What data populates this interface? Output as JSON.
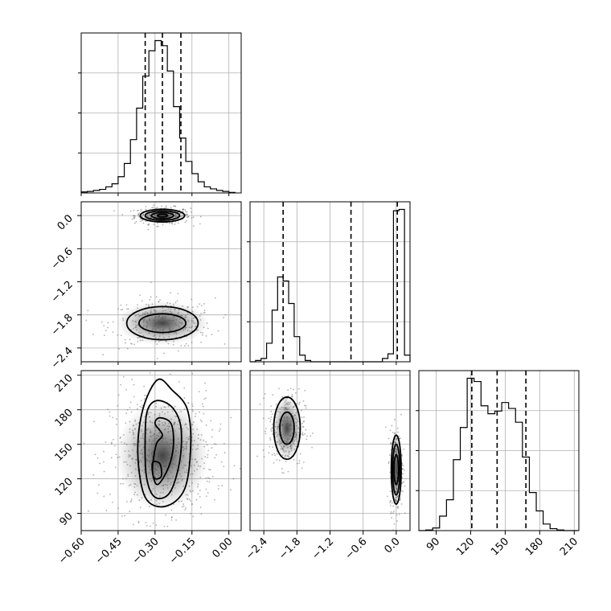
{
  "chart_data": {
    "type": "corner",
    "parameters": [
      {
        "ticks": [
          -0.6,
          -0.45,
          -0.3,
          -0.15,
          0.0
        ],
        "tick_labels": [
          "−0.60",
          "−0.45",
          "−0.30",
          "−0.15",
          "0.00"
        ],
        "range": [
          -0.6,
          0.05
        ],
        "quantiles": [
          -0.34,
          -0.27,
          -0.195
        ],
        "histogram": {
          "edges": [
            -0.6,
            -0.575,
            -0.55,
            -0.525,
            -0.5,
            -0.475,
            -0.45,
            -0.425,
            -0.4,
            -0.375,
            -0.35,
            -0.325,
            -0.3,
            -0.275,
            -0.25,
            -0.225,
            -0.2,
            -0.175,
            -0.15,
            -0.125,
            -0.1,
            -0.075,
            -0.05,
            -0.025,
            0.0,
            0.025
          ],
          "counts": [
            2,
            3,
            5,
            7,
            12,
            18,
            32,
            58,
            105,
            167,
            230,
            280,
            300,
            290,
            240,
            170,
            108,
            62,
            38,
            22,
            12,
            8,
            5,
            3,
            1
          ]
        }
      },
      {
        "ticks": [
          -2.4,
          -1.8,
          -1.2,
          -0.6,
          0.0
        ],
        "tick_labels": [
          "−2.4",
          "−1.8",
          "−1.2",
          "−0.6",
          "0.0"
        ],
        "range": [
          -2.65,
          0.25
        ],
        "quantiles": [
          -2.05,
          -0.82,
          0.02
        ],
        "histogram": {
          "edges": [
            -2.65,
            -2.55,
            -2.45,
            -2.35,
            -2.25,
            -2.15,
            -2.05,
            -1.95,
            -1.85,
            -1.75,
            -1.65,
            -1.55,
            -1.45,
            -1.35,
            -1.25,
            -1.15,
            -1.05,
            -0.95,
            -0.85,
            -0.75,
            -0.65,
            -0.55,
            -0.45,
            -0.35,
            -0.25,
            -0.15,
            -0.05,
            0.05,
            0.15,
            0.25
          ],
          "counts": [
            0,
            2,
            5,
            28,
            78,
            128,
            122,
            88,
            38,
            10,
            2,
            0,
            0,
            0,
            0,
            0,
            0,
            0,
            0,
            0,
            0,
            0,
            0,
            0,
            5,
            12,
            228,
            230,
            10
          ]
        }
      },
      {
        "ticks": [
          90,
          120,
          150,
          180,
          210
        ],
        "tick_labels": [
          "90",
          "120",
          "150",
          "180",
          "210"
        ],
        "range": [
          75,
          214
        ],
        "quantiles": [
          121,
          143,
          168
        ],
        "histogram": {
          "edges": [
            75,
            81,
            87,
            93,
            99,
            105,
            111,
            117,
            123,
            129,
            135,
            141,
            147,
            153,
            159,
            165,
            171,
            177,
            183,
            189,
            195,
            201,
            207,
            213
          ],
          "counts": [
            0,
            1,
            4,
            22,
            47,
            108,
            157,
            232,
            227,
            190,
            178,
            182,
            195,
            186,
            165,
            112,
            58,
            30,
            10,
            3,
            1,
            0,
            0
          ]
        }
      }
    ],
    "pairs": [
      {
        "x": 0,
        "y": 1,
        "modes": [
          {
            "cx": -0.27,
            "cy": 0.0,
            "sx": 0.045,
            "sy": 0.06,
            "w": 0.52,
            "rx_contours": [
              0.09,
              0.07,
              0.045,
              0.02
            ],
            "ry_contours": [
              0.115,
              0.085,
              0.055,
              0.025
            ]
          },
          {
            "cx": -0.27,
            "cy": -1.95,
            "sx": 0.085,
            "sy": 0.18,
            "w": 0.48,
            "rx_contours": [
              0.145,
              0.095
            ],
            "ry_contours": [
              0.3,
              0.17
            ]
          }
        ]
      },
      {
        "x": 0,
        "y": 2,
        "modes": [
          {
            "cx": -0.27,
            "cy": 140,
            "sx": 0.085,
            "sy": 22,
            "w": 1.0
          }
        ],
        "contours": [
          [
            [
              -0.29,
              206
            ],
            [
              -0.23,
              197
            ],
            [
              -0.17,
              181
            ],
            [
              -0.155,
              150
            ],
            [
              -0.18,
              111
            ],
            [
              -0.26,
              96
            ],
            [
              -0.34,
              104
            ],
            [
              -0.37,
              142
            ],
            [
              -0.35,
              180
            ]
          ],
          [
            [
              -0.29,
              188
            ],
            [
              -0.23,
              182
            ],
            [
              -0.195,
              165
            ],
            [
              -0.2,
              135
            ],
            [
              -0.24,
              108
            ],
            [
              -0.3,
              104
            ],
            [
              -0.335,
              122
            ],
            [
              -0.34,
              158
            ],
            [
              -0.33,
              180
            ]
          ],
          [
            [
              -0.28,
              173
            ],
            [
              -0.235,
              168
            ],
            [
              -0.225,
              150
            ],
            [
              -0.245,
              130
            ],
            [
              -0.29,
              115
            ],
            [
              -0.31,
              128
            ],
            [
              -0.295,
              150
            ],
            [
              -0.27,
              158
            ],
            [
              -0.3,
              168
            ]
          ],
          [
            [
              -0.31,
              134
            ],
            [
              -0.28,
              133
            ],
            [
              -0.275,
              122
            ],
            [
              -0.305,
              121
            ]
          ]
        ]
      },
      {
        "x": 1,
        "y": 2,
        "modes": [
          {
            "cx": -1.98,
            "cy": 164,
            "sx": 0.13,
            "sy": 13,
            "w": 0.5,
            "rx_contours": [
              0.24,
              0.13
            ],
            "ry_contours": [
              27,
              14
            ]
          },
          {
            "cx": 0.0,
            "cy": 128,
            "sx": 0.045,
            "sy": 14,
            "w": 0.5,
            "rx_contours": [
              0.09,
              0.065,
              0.04
            ],
            "ry_contours": [
              30,
              22,
              13
            ]
          }
        ]
      }
    ]
  }
}
